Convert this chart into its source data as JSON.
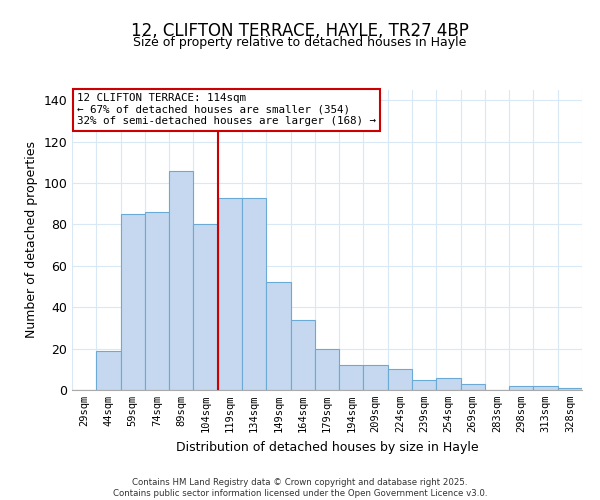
{
  "title": "12, CLIFTON TERRACE, HAYLE, TR27 4BP",
  "subtitle": "Size of property relative to detached houses in Hayle",
  "xlabel": "Distribution of detached houses by size in Hayle",
  "ylabel": "Number of detached properties",
  "bar_labels": [
    "29sqm",
    "44sqm",
    "59sqm",
    "74sqm",
    "89sqm",
    "104sqm",
    "119sqm",
    "134sqm",
    "149sqm",
    "164sqm",
    "179sqm",
    "194sqm",
    "209sqm",
    "224sqm",
    "239sqm",
    "254sqm",
    "269sqm",
    "283sqm",
    "298sqm",
    "313sqm",
    "328sqm"
  ],
  "bar_values": [
    0,
    19,
    85,
    86,
    106,
    80,
    93,
    93,
    52,
    34,
    20,
    12,
    12,
    10,
    5,
    6,
    3,
    0,
    2,
    2,
    1
  ],
  "bar_color": "#c5d8f0",
  "bar_edge_color": "#6aaad4",
  "vline_color": "#cc0000",
  "vline_x_index": 6,
  "ylim": [
    0,
    145
  ],
  "yticks": [
    0,
    20,
    40,
    60,
    80,
    100,
    120,
    140
  ],
  "annotation_title": "12 CLIFTON TERRACE: 114sqm",
  "annotation_line1": "← 67% of detached houses are smaller (354)",
  "annotation_line2": "32% of semi-detached houses are larger (168) →",
  "annotation_box_color": "#ffffff",
  "annotation_box_edge": "#cc0000",
  "footer_line1": "Contains HM Land Registry data © Crown copyright and database right 2025.",
  "footer_line2": "Contains public sector information licensed under the Open Government Licence v3.0.",
  "background_color": "#ffffff",
  "grid_color": "#d8e8f5"
}
